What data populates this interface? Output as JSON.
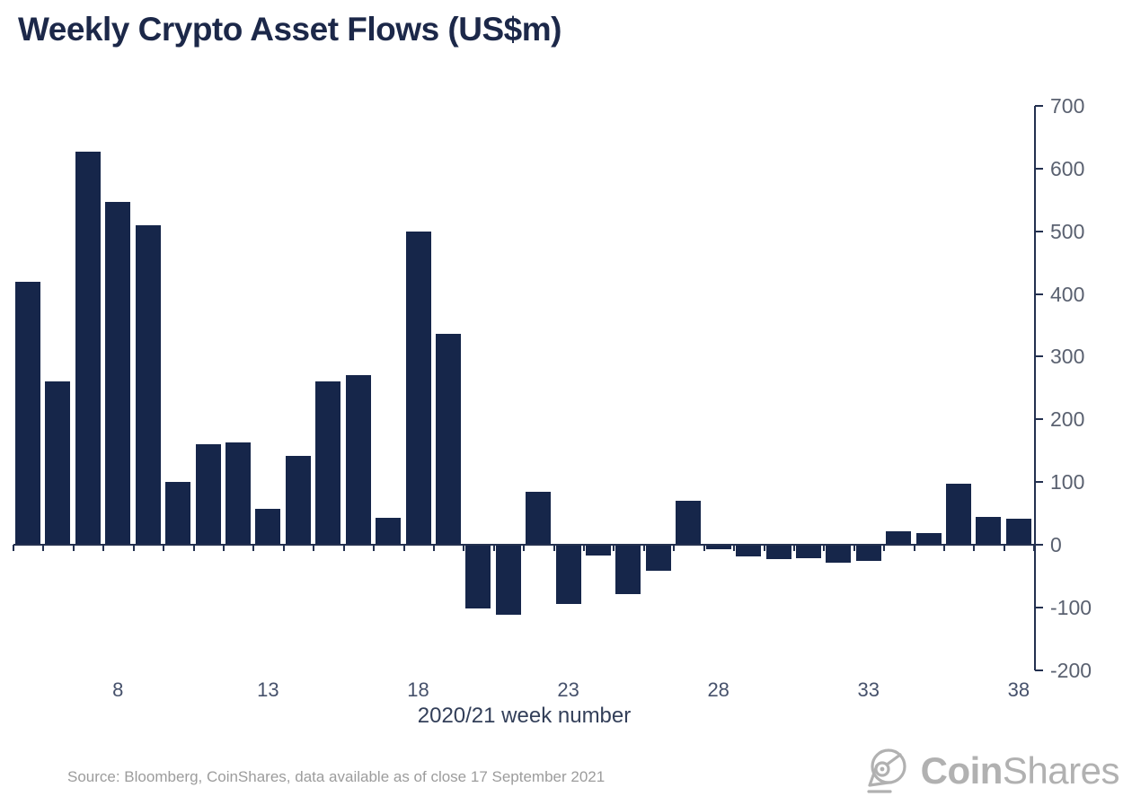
{
  "title": "Weekly Crypto Asset Flows (US$m)",
  "source_note": "Source: Bloomberg, CoinShares, data available as of close 17 September 2021",
  "logo": {
    "brand_bold": "Coin",
    "brand_light": "Shares",
    "icon": "coinshares-orb-icon",
    "color": "#b1b1b1"
  },
  "chart_data": {
    "type": "bar",
    "x_start_week": 5,
    "weeks": [
      5,
      6,
      7,
      8,
      9,
      10,
      11,
      12,
      13,
      14,
      15,
      16,
      17,
      18,
      19,
      20,
      21,
      22,
      23,
      24,
      25,
      26,
      27,
      28,
      29,
      30,
      31,
      32,
      33,
      34,
      35,
      36,
      37,
      38
    ],
    "values": [
      420,
      260,
      627,
      547,
      510,
      100,
      161,
      163,
      57,
      142,
      260,
      270,
      43,
      500,
      336,
      -102,
      -112,
      85,
      -95,
      -17,
      -79,
      -42,
      70,
      -7,
      -19,
      -23,
      -21,
      -28,
      -26,
      21,
      19,
      97,
      45,
      42
    ],
    "title": "Weekly Crypto Asset Flows (US$m)",
    "xlabel": "2020/21 week number",
    "ylabel": "",
    "x_tick_labels": [
      8,
      13,
      18,
      23,
      28,
      33,
      38
    ],
    "y_ticks": [
      700,
      600,
      500,
      400,
      300,
      200,
      100,
      0,
      -100,
      -200
    ],
    "ylim": [
      -200,
      700
    ],
    "grid": false,
    "legend_position": "none",
    "y_axis_side": "right",
    "bar_color": "#16264a",
    "axis_color": "#23304f"
  }
}
